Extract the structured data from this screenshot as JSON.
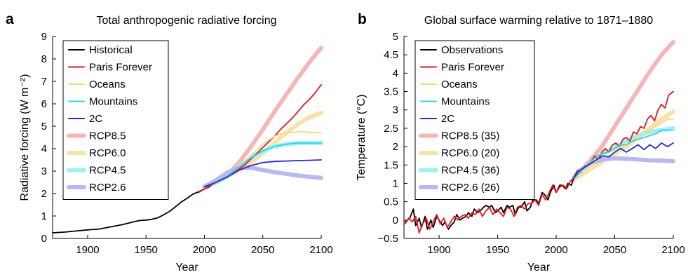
{
  "chart_data": [
    {
      "panel_letter": "a",
      "type": "line",
      "title": "Total anthropogenic radiative forcing",
      "xlabel": "Year",
      "ylabel": "Radiative forcing (W m⁻²)",
      "xlim": [
        1870,
        2100
      ],
      "ylim": [
        0,
        9
      ],
      "xticks": [
        1900,
        1950,
        2000,
        2050,
        2100
      ],
      "yticks": [
        0,
        1,
        2,
        3,
        4,
        5,
        6,
        7,
        8,
        9
      ],
      "grid": false,
      "legend": "top-left",
      "series": [
        {
          "name": "Historical",
          "color": "#000000",
          "style": "thin",
          "x": [
            1870,
            1880,
            1890,
            1900,
            1910,
            1920,
            1930,
            1940,
            1945,
            1950,
            1955,
            1960,
            1965,
            1970,
            1975,
            1980,
            1985,
            1990,
            1995,
            2000,
            2005
          ],
          "y": [
            0.25,
            0.28,
            0.33,
            0.38,
            0.42,
            0.52,
            0.62,
            0.75,
            0.8,
            0.82,
            0.85,
            0.92,
            1.05,
            1.2,
            1.4,
            1.62,
            1.78,
            1.97,
            2.08,
            2.2,
            2.32
          ]
        },
        {
          "name": "Paris Forever",
          "color": "#e31a1c",
          "style": "thin",
          "x": [
            1995,
            2000,
            2005,
            2010,
            2015,
            2020,
            2025,
            2030,
            2035,
            2040,
            2045,
            2050,
            2055,
            2060,
            2065,
            2070,
            2075,
            2080,
            2085,
            2090,
            2095,
            2100
          ],
          "y": [
            2.05,
            2.2,
            2.35,
            2.5,
            2.62,
            2.75,
            2.92,
            3.1,
            3.3,
            3.55,
            3.8,
            4.05,
            4.3,
            4.55,
            4.85,
            5.1,
            5.35,
            5.65,
            5.95,
            6.2,
            6.5,
            6.85
          ]
        },
        {
          "name": "Oceans",
          "color": "#f6d77a",
          "style": "thin",
          "x": [
            2000,
            2010,
            2020,
            2030,
            2040,
            2050,
            2060,
            2065,
            2070,
            2075,
            2080,
            2085,
            2090,
            2095,
            2100
          ],
          "y": [
            2.3,
            2.5,
            2.8,
            3.2,
            3.7,
            4.2,
            4.55,
            4.65,
            4.7,
            4.72,
            4.75,
            4.75,
            4.73,
            4.72,
            4.7
          ]
        },
        {
          "name": "Mountains",
          "color": "#2ed3e8",
          "style": "thin",
          "x": [
            2000,
            2010,
            2020,
            2030,
            2040,
            2050,
            2060,
            2070,
            2080,
            2090,
            2100
          ],
          "y": [
            2.3,
            2.5,
            2.8,
            3.2,
            3.6,
            3.9,
            4.1,
            4.2,
            4.25,
            4.25,
            4.25
          ]
        },
        {
          "name": "2C",
          "color": "#1f2bd6",
          "style": "thin",
          "x": [
            2000,
            2010,
            2020,
            2030,
            2040,
            2050,
            2060,
            2070,
            2080,
            2090,
            2100
          ],
          "y": [
            2.3,
            2.5,
            2.75,
            3.05,
            3.25,
            3.38,
            3.43,
            3.45,
            3.47,
            3.48,
            3.5
          ]
        },
        {
          "name": "RCP8.5",
          "color": "#f4b6b6",
          "style": "thick",
          "x": [
            2000,
            2010,
            2020,
            2030,
            2040,
            2050,
            2060,
            2070,
            2080,
            2090,
            2100
          ],
          "y": [
            2.3,
            2.5,
            2.85,
            3.4,
            4.1,
            4.85,
            5.65,
            6.4,
            7.15,
            7.85,
            8.5
          ]
        },
        {
          "name": "RCP6.0",
          "color": "#f8e2a6",
          "style": "thick",
          "x": [
            2000,
            2010,
            2020,
            2030,
            2040,
            2050,
            2060,
            2070,
            2080,
            2090,
            2100
          ],
          "y": [
            2.3,
            2.5,
            2.75,
            3.05,
            3.4,
            3.8,
            4.25,
            4.7,
            5.1,
            5.4,
            5.6
          ]
        },
        {
          "name": "RCP4.5",
          "color": "#a0f0f4",
          "style": "thick",
          "x": [
            2000,
            2010,
            2020,
            2030,
            2040,
            2050,
            2060,
            2070,
            2080,
            2090,
            2100
          ],
          "y": [
            2.3,
            2.5,
            2.8,
            3.2,
            3.6,
            3.9,
            4.1,
            4.2,
            4.25,
            4.25,
            4.25
          ]
        },
        {
          "name": "RCP2.6",
          "color": "#b9b9ee",
          "style": "thick",
          "x": [
            2000,
            2010,
            2020,
            2030,
            2040,
            2050,
            2060,
            2070,
            2080,
            2090,
            2100
          ],
          "y": [
            2.3,
            2.6,
            2.95,
            3.15,
            3.15,
            3.05,
            2.95,
            2.88,
            2.8,
            2.75,
            2.7
          ]
        }
      ]
    },
    {
      "panel_letter": "b",
      "type": "line",
      "title": "Global surface warming relative to 1871–1880",
      "xlabel": "Year",
      "ylabel": "Temperature (°C)",
      "xlim": [
        1870,
        2100
      ],
      "ylim": [
        -0.5,
        5
      ],
      "xticks": [
        1900,
        1950,
        2000,
        2050,
        2100
      ],
      "yticks": [
        -0.5,
        0,
        0.5,
        1,
        1.5,
        2,
        2.5,
        3,
        3.5,
        4,
        4.5,
        5
      ],
      "ytick_labels": [
        "−0.5",
        "0",
        "0.5",
        "1",
        "1.5",
        "2",
        "2.5",
        "3",
        "3.5",
        "4",
        "4.5",
        "5"
      ],
      "grid": false,
      "legend": "top-left",
      "series": [
        {
          "name": "Observations",
          "color": "#000000",
          "style": "thin",
          "x": [
            1871,
            1875,
            1878,
            1880,
            1883,
            1885,
            1888,
            1890,
            1893,
            1895,
            1898,
            1900,
            1903,
            1905,
            1908,
            1910,
            1913,
            1915,
            1918,
            1920,
            1923,
            1925,
            1928,
            1930,
            1933,
            1935,
            1938,
            1940,
            1943,
            1945,
            1948,
            1950,
            1953,
            1955,
            1958,
            1960,
            1963,
            1965,
            1968,
            1970,
            1973,
            1975,
            1978,
            1980,
            1983,
            1985,
            1988,
            1990,
            1993,
            1995,
            1998,
            2000,
            2003,
            2005,
            2008,
            2010,
            2013,
            2015,
            2017
          ],
          "y": [
            -0.05,
            0.05,
            0.3,
            -0.15,
            0.05,
            -0.2,
            0.1,
            -0.25,
            0.0,
            -0.2,
            0.1,
            0.0,
            -0.15,
            -0.05,
            -0.25,
            -0.15,
            -0.05,
            0.15,
            0.0,
            0.05,
            0.1,
            0.2,
            0.1,
            0.3,
            0.2,
            0.25,
            0.35,
            0.4,
            0.35,
            0.4,
            0.2,
            0.25,
            0.35,
            0.2,
            0.4,
            0.35,
            0.4,
            0.15,
            0.35,
            0.35,
            0.5,
            0.25,
            0.35,
            0.55,
            0.55,
            0.45,
            0.75,
            0.7,
            0.55,
            0.75,
            0.95,
            0.75,
            0.95,
            0.95,
            0.85,
            1.0,
            0.95,
            1.15,
            1.25
          ]
        },
        {
          "name": "Paris Forever",
          "color": "#e31a1c",
          "style": "thin",
          "x": [
            1871,
            1874,
            1877,
            1880,
            1883,
            1886,
            1889,
            1892,
            1895,
            1898,
            1901,
            1904,
            1907,
            1910,
            1913,
            1916,
            1919,
            1922,
            1925,
            1928,
            1931,
            1934,
            1937,
            1940,
            1943,
            1946,
            1949,
            1952,
            1955,
            1958,
            1961,
            1964,
            1967,
            1970,
            1973,
            1976,
            1979,
            1982,
            1985,
            1988,
            1991,
            1994,
            1997,
            2000,
            2003,
            2006,
            2009,
            2012,
            2015,
            2018,
            2021,
            2024,
            2027,
            2030,
            2033,
            2036,
            2039,
            2042,
            2045,
            2048,
            2051,
            2054,
            2057,
            2060,
            2063,
            2066,
            2069,
            2072,
            2075,
            2078,
            2081,
            2084,
            2087,
            2090,
            2093,
            2096,
            2100
          ],
          "y": [
            -0.1,
            0.05,
            -0.05,
            0.1,
            -0.35,
            -0.1,
            0.05,
            -0.25,
            -0.05,
            0.15,
            -0.1,
            0.05,
            -0.2,
            -0.05,
            0.1,
            0.0,
            0.1,
            0.15,
            0.05,
            0.2,
            0.15,
            0.3,
            0.1,
            0.25,
            0.35,
            0.15,
            0.3,
            0.2,
            0.1,
            0.35,
            0.3,
            0.1,
            0.35,
            0.4,
            0.3,
            0.45,
            0.45,
            0.55,
            0.4,
            0.7,
            0.55,
            0.75,
            0.95,
            0.75,
            0.9,
            0.95,
            0.85,
            1.05,
            1.15,
            1.35,
            1.3,
            1.45,
            1.5,
            1.6,
            1.75,
            1.65,
            1.85,
            1.95,
            1.85,
            2.05,
            2.1,
            2.0,
            2.2,
            2.25,
            2.15,
            2.4,
            2.35,
            2.55,
            2.5,
            2.75,
            2.85,
            2.7,
            3.0,
            3.15,
            3.05,
            3.4,
            3.5
          ]
        },
        {
          "name": "Oceans",
          "color": "#f6d77a",
          "style": "thin",
          "x": [
            2015,
            2020,
            2025,
            2030,
            2035,
            2040,
            2045,
            2050,
            2055,
            2060,
            2065,
            2070,
            2075,
            2080,
            2085,
            2090,
            2095,
            2100
          ],
          "y": [
            1.15,
            1.3,
            1.4,
            1.5,
            1.62,
            1.75,
            1.85,
            1.92,
            2.0,
            2.05,
            2.15,
            2.25,
            2.35,
            2.45,
            2.55,
            2.65,
            2.75,
            2.75
          ]
        },
        {
          "name": "Mountains",
          "color": "#2ed3e8",
          "style": "thin",
          "x": [
            2015,
            2020,
            2025,
            2030,
            2035,
            2040,
            2045,
            2050,
            2055,
            2060,
            2065,
            2070,
            2075,
            2080,
            2085,
            2090,
            2095,
            2100
          ],
          "y": [
            1.15,
            1.3,
            1.45,
            1.6,
            1.75,
            1.82,
            1.85,
            1.95,
            2.05,
            2.05,
            2.15,
            2.2,
            2.25,
            2.3,
            2.35,
            2.45,
            2.45,
            2.45
          ]
        },
        {
          "name": "2C",
          "color": "#1f2bd6",
          "style": "thin",
          "x": [
            2015,
            2020,
            2025,
            2030,
            2035,
            2040,
            2045,
            2050,
            2055,
            2060,
            2065,
            2070,
            2075,
            2080,
            2085,
            2090,
            2095,
            2100
          ],
          "y": [
            1.15,
            1.35,
            1.45,
            1.55,
            1.65,
            1.75,
            1.72,
            1.85,
            1.95,
            1.85,
            1.95,
            2.05,
            1.92,
            2.05,
            1.95,
            2.1,
            2.0,
            2.1
          ]
        },
        {
          "name": "RCP8.5 (35)",
          "color": "#f4b6b6",
          "style": "thick",
          "x": [
            2015,
            2020,
            2030,
            2040,
            2050,
            2060,
            2070,
            2080,
            2090,
            2100
          ],
          "y": [
            1.15,
            1.3,
            1.65,
            2.05,
            2.55,
            3.05,
            3.55,
            4.05,
            4.5,
            4.85
          ]
        },
        {
          "name": "RCP6.0 (20)",
          "color": "#f8e2a6",
          "style": "thick",
          "x": [
            2015,
            2020,
            2030,
            2040,
            2050,
            2060,
            2070,
            2080,
            2090,
            2100
          ],
          "y": [
            1.1,
            1.2,
            1.4,
            1.6,
            1.8,
            2.0,
            2.25,
            2.5,
            2.75,
            2.95
          ]
        },
        {
          "name": "RCP4.5 (36)",
          "color": "#a0f0f4",
          "style": "thick",
          "x": [
            2015,
            2020,
            2030,
            2040,
            2050,
            2060,
            2070,
            2080,
            2090,
            2100
          ],
          "y": [
            1.15,
            1.3,
            1.55,
            1.8,
            2.0,
            2.15,
            2.3,
            2.4,
            2.45,
            2.5
          ]
        },
        {
          "name": "RCP2.6 (26)",
          "color": "#b9b9ee",
          "style": "thick",
          "x": [
            2015,
            2020,
            2030,
            2040,
            2050,
            2060,
            2070,
            2080,
            2090,
            2100
          ],
          "y": [
            1.15,
            1.35,
            1.55,
            1.65,
            1.68,
            1.67,
            1.65,
            1.63,
            1.62,
            1.6
          ]
        }
      ]
    }
  ]
}
